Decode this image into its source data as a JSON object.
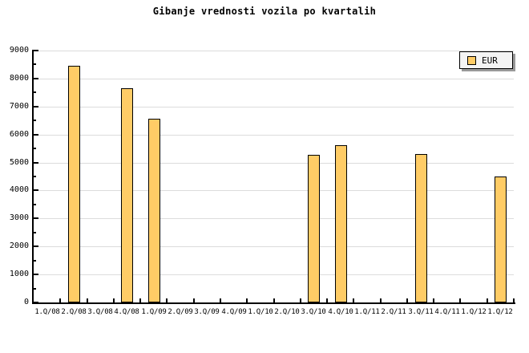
{
  "chart_data": {
    "type": "bar",
    "title": "Gibanje vrednosti vozila po kvartalih",
    "categories": [
      "1.Q/08",
      "2.Q/08",
      "3.Q/08",
      "4.Q/08",
      "1.Q/09",
      "2.Q/09",
      "3.Q/09",
      "4.Q/09",
      "1.Q/10",
      "2.Q/10",
      "3.Q/10",
      "4.Q/10",
      "1.Q/11",
      "2.Q/11",
      "3.Q/11",
      "4.Q/11",
      "1.Q/12",
      "1.Q/12"
    ],
    "series": [
      {
        "name": "EUR",
        "values": [
          null,
          8450,
          null,
          7650,
          6550,
          null,
          null,
          null,
          null,
          null,
          5280,
          5620,
          null,
          null,
          5300,
          null,
          null,
          4500
        ]
      }
    ],
    "xlabel": "",
    "ylabel": "",
    "ylim": [
      0,
      9000
    ],
    "y_major_step": 1000,
    "y_minor_step": 500,
    "y_tick_labels": [
      "0",
      "1000",
      "2000",
      "3000",
      "4000",
      "5000",
      "6000",
      "7000",
      "8000",
      "9000"
    ],
    "grid": {
      "horizontal_major": true,
      "vertical": false
    },
    "legend": {
      "position": "top-right",
      "entries": [
        {
          "label": "EUR",
          "color": "#FFCC66"
        }
      ]
    },
    "colors": {
      "background": "#FFFFFF",
      "bar_fill": "#FFCC66",
      "bar_border": "#000000",
      "grid_line": "#DCDCDC",
      "axis": "#000000",
      "text": "#000000",
      "legend_bg": "#F4F4F4",
      "legend_border": "#000000",
      "legend_shadow": "#999999"
    }
  }
}
